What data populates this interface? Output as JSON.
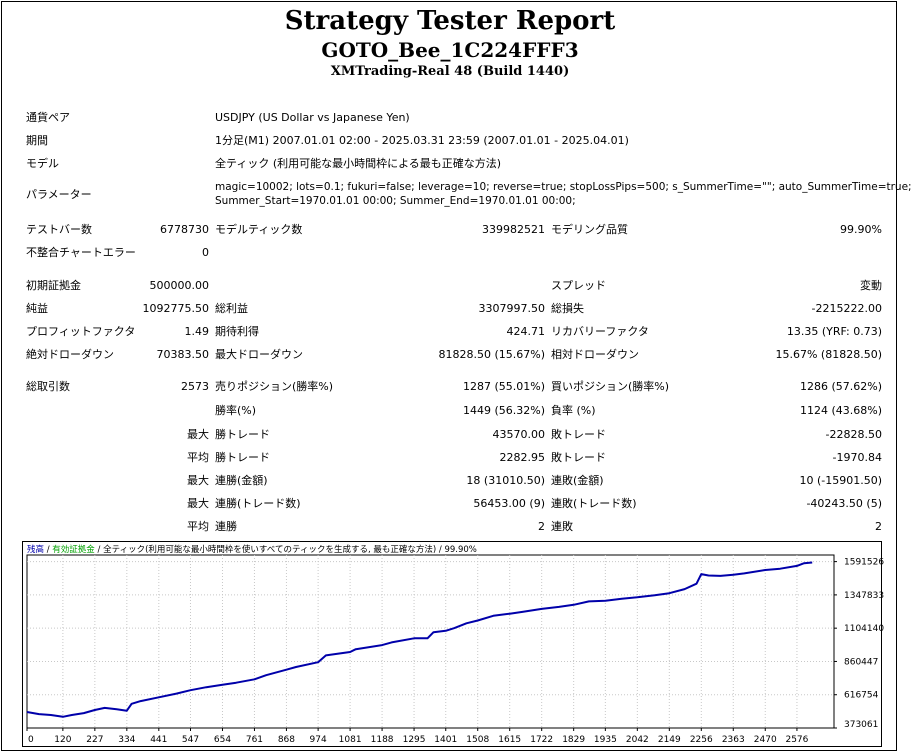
{
  "header": {
    "title": "Strategy Tester Report",
    "expert": "GOTO_Bee_1C224FFF3",
    "server": "XMTrading-Real 48 (Build 1440)"
  },
  "settings": {
    "symbol_label": "通貨ペア",
    "symbol_value": "USDJPY (US Dollar vs Japanese Yen)",
    "period_label": "期間",
    "period_value": "1分足(M1) 2007.01.01 02:00 - 2025.03.31 23:59 (2007.01.01 - 2025.04.01)",
    "model_label": "モデル",
    "model_value": "全ティック (利用可能な最小時間枠による最も正確な方法)",
    "params_label": "パラメーター",
    "params_line1": "magic=10002; lots=0.1; fukuri=false; leverage=10; reverse=true; stopLossPips=500; s_SummerTime=\"\"; auto_SummerTime=true;",
    "params_line2": "Summer_Start=1970.01.01 00:00; Summer_End=1970.01.01 00:00;"
  },
  "quality": {
    "bars_label": "テストバー数",
    "bars_value": "6778730",
    "ticks_label": "モデルティック数",
    "ticks_value": "339982521",
    "modeling_label": "モデリング品質",
    "modeling_value": "99.90%",
    "errors_label": "不整合チャートエラー",
    "errors_value": "0"
  },
  "results": {
    "deposit_label": "初期証拠金",
    "deposit_value": "500000.00",
    "spread_label": "スプレッド",
    "spread_value": "変動",
    "net_label": "純益",
    "net_value": "1092775.50",
    "gross_profit_label": "総利益",
    "gross_profit_value": "3307997.50",
    "gross_loss_label": "総損失",
    "gross_loss_value": "-2215222.00",
    "pf_label": "プロフィットファクタ",
    "pf_value": "1.49",
    "expected_label": "期待利得",
    "expected_value": "424.71",
    "recovery_label": "リカバリーファクタ",
    "recovery_value": "13.35 (YRF: 0.73)",
    "abs_dd_label": "絶対ドローダウン",
    "abs_dd_value": "70383.50",
    "max_dd_label": "最大ドローダウン",
    "max_dd_value": "81828.50 (15.67%)",
    "rel_dd_label": "相対ドローダウン",
    "rel_dd_value": "15.67% (81828.50)"
  },
  "trades": {
    "total_label": "総取引数",
    "total_value": "2573",
    "short_label": "売りポジション(勝率%)",
    "short_value": "1287 (55.01%)",
    "long_label": "買いポジション(勝率%)",
    "long_value": "1286 (57.62%)",
    "winrate_label": "勝率(%)",
    "winrate_value": "1449 (56.32%)",
    "lossrate_label": "負率 (%)",
    "lossrate_value": "1124 (43.68%)",
    "max_prefix": "最大",
    "avg_prefix": "平均",
    "max_win_label": "勝トレード",
    "max_win_value": "43570.00",
    "max_loss_label": "敗トレード",
    "max_loss_value": "-22828.50",
    "avg_win_label": "勝トレード",
    "avg_win_value": "2282.95",
    "avg_loss_label": "敗トレード",
    "avg_loss_value": "-1970.84",
    "max_cons_win_amt_label": "連勝(金額)",
    "max_cons_win_amt_value": "18 (31010.50)",
    "max_cons_loss_amt_label": "連敗(金額)",
    "max_cons_loss_amt_value": "10 (-15901.50)",
    "max_cons_win_cnt_label": "連勝(トレード数)",
    "max_cons_win_cnt_value": "56453.00 (9)",
    "max_cons_loss_cnt_label": "連敗(トレード数)",
    "max_cons_loss_cnt_value": "-40243.50 (5)",
    "avg_cons_win_label": "連勝",
    "avg_cons_win_value": "2",
    "avg_cons_loss_label": "連敗",
    "avg_cons_loss_value": "2"
  },
  "chart_data": {
    "type": "line",
    "legend": {
      "balance": "残高",
      "sep1": " / ",
      "equity": "有効証拠金",
      "sep2": " / ",
      "model": "全ティック(利用可能な最小時間枠を使いすべてのティックを生成する, 最も正確な方法)",
      "quality": " / 99.90%"
    },
    "colors": {
      "balance": "#0000aa",
      "equity": "#00a000",
      "grid": "#c8c8c8"
    },
    "x_ticks": [
      0,
      120,
      227,
      334,
      441,
      547,
      654,
      761,
      868,
      974,
      1081,
      1188,
      1295,
      1401,
      1508,
      1615,
      1722,
      1829,
      1935,
      2042,
      2149,
      2256,
      2363,
      2470,
      2576
    ],
    "y_ticks": [
      "373061",
      "616754",
      "860447",
      "1104140",
      "1347833",
      "1591526"
    ],
    "xlim": [
      0,
      2700
    ],
    "ylim": [
      373061,
      1640000
    ],
    "series": [
      {
        "x": [
          0,
          40,
          80,
          120,
          150,
          190,
          227,
          260,
          300,
          334,
          350,
          380,
          441,
          500,
          547,
          600,
          654,
          700,
          761,
          800,
          868,
          900,
          974,
          1000,
          1081,
          1100,
          1188,
          1220,
          1295,
          1340,
          1360,
          1401,
          1430,
          1470,
          1508,
          1560,
          1615,
          1660,
          1722,
          1780,
          1829,
          1880,
          1935,
          1990,
          2042,
          2100,
          2149,
          2200,
          2240,
          2256,
          2280,
          2320,
          2363,
          2400,
          2470,
          2520,
          2576,
          2600,
          2627
        ],
        "y": [
          490000,
          475000,
          468000,
          455000,
          468000,
          482000,
          505000,
          520000,
          510000,
          500000,
          550000,
          570000,
          598000,
          625000,
          650000,
          672000,
          690000,
          705000,
          730000,
          760000,
          800000,
          820000,
          855000,
          905000,
          930000,
          950000,
          980000,
          1000000,
          1030000,
          1030000,
          1075000,
          1085000,
          1105000,
          1140000,
          1160000,
          1195000,
          1210000,
          1225000,
          1245000,
          1260000,
          1275000,
          1300000,
          1305000,
          1320000,
          1330000,
          1345000,
          1360000,
          1390000,
          1430000,
          1500000,
          1490000,
          1487000,
          1495000,
          1505000,
          1530000,
          1540000,
          1560000,
          1580000,
          1585000
        ]
      }
    ]
  }
}
